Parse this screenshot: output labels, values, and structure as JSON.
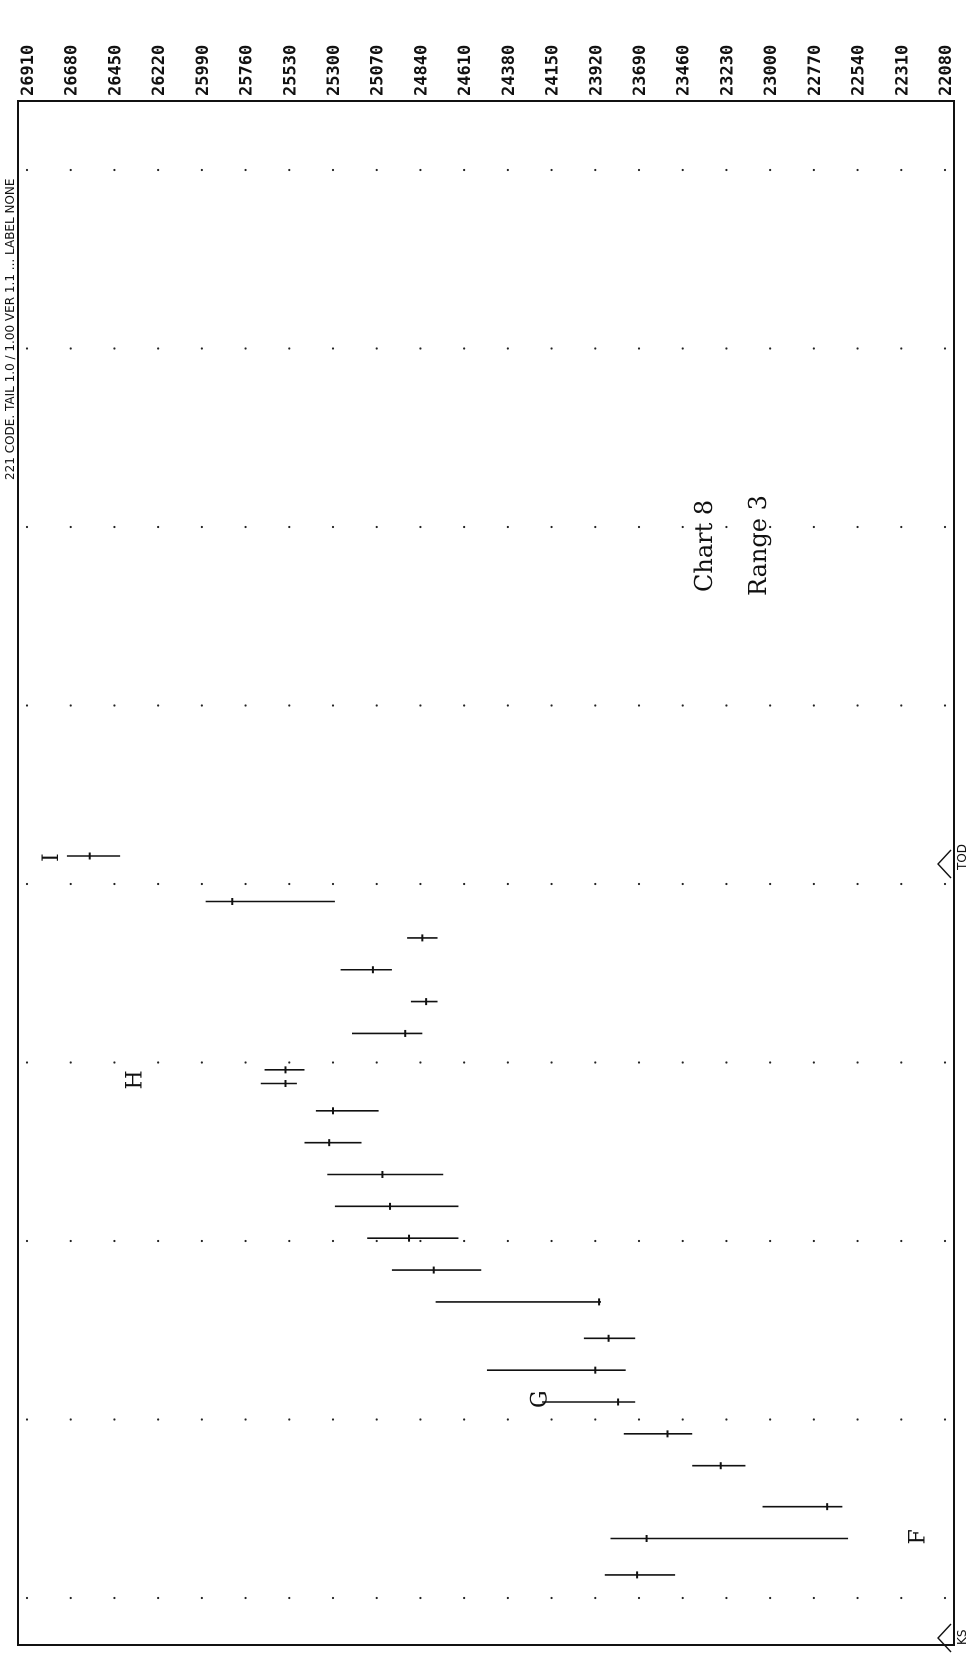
{
  "chart_data": {
    "type": "range-chart",
    "title": "",
    "annotation_lines": [
      "Chart 8",
      "Range 3"
    ],
    "top_header_text": "221 CODE. TAIL 1.0 / 1.00 VER 1.1 ... LABEL NONE",
    "bottom_marks": [
      "TOD",
      "KS"
    ],
    "axis_ticks": [
      "26910",
      "26680",
      "26450",
      "26220",
      "25990",
      "25760",
      "25530",
      "25300",
      "25070",
      "24840",
      "24610",
      "24380",
      "24150",
      "23920",
      "23690",
      "23460",
      "23230",
      "23000",
      "22770",
      "22540",
      "22310",
      "22080"
    ],
    "axis_min": 22080,
    "axis_max": 26910,
    "grid": "dotted",
    "group_labels": [
      {
        "label": "I",
        "value": 26790,
        "row": 1.0
      },
      {
        "label": "H",
        "value": 26350,
        "row": 6.0
      },
      {
        "label": "G",
        "value": 24220,
        "row": 13.0
      },
      {
        "label": "F",
        "value": 22230,
        "row": 16.0
      }
    ],
    "segments": [
      {
        "row": 1.0,
        "start": 26700,
        "end": 26420,
        "marker": 26580
      },
      {
        "row": 2.0,
        "start": 25970,
        "end": 25290,
        "marker": 25830
      },
      {
        "row": 2.8,
        "start": 24910,
        "end": 24750,
        "marker": 24830
      },
      {
        "row": 3.5,
        "start": 25260,
        "end": 24990,
        "marker": 25090
      },
      {
        "row": 4.2,
        "start": 24890,
        "end": 24750,
        "marker": 24810
      },
      {
        "row": 4.9,
        "start": 25200,
        "end": 24830,
        "marker": 24920
      },
      {
        "row": 5.7,
        "start": 25660,
        "end": 25450,
        "marker": 25550
      },
      {
        "row": 6.0,
        "start": 25680,
        "end": 25490,
        "marker": 25550
      },
      {
        "row": 6.6,
        "start": 25390,
        "end": 25060,
        "marker": 25300
      },
      {
        "row": 7.3,
        "start": 25450,
        "end": 25150,
        "marker": 25320
      },
      {
        "row": 8.0,
        "start": 25330,
        "end": 24720,
        "marker": 25040
      },
      {
        "row": 8.7,
        "start": 25290,
        "end": 24640,
        "marker": 25000
      },
      {
        "row": 9.4,
        "start": 25120,
        "end": 24640,
        "marker": 24900
      },
      {
        "row": 10.1,
        "start": 24990,
        "end": 24520,
        "marker": 24770
      },
      {
        "row": 10.8,
        "start": 24760,
        "end": 23890,
        "marker": 23900
      },
      {
        "row": 11.6,
        "start": 23980,
        "end": 23710,
        "marker": 23850
      },
      {
        "row": 12.3,
        "start": 24490,
        "end": 23760,
        "marker": 23920
      },
      {
        "row": 13.0,
        "start": 24200,
        "end": 23710,
        "marker": 23800
      },
      {
        "row": 13.7,
        "start": 23770,
        "end": 23410,
        "marker": 23540
      },
      {
        "row": 14.4,
        "start": 23410,
        "end": 23130,
        "marker": 23260
      },
      {
        "row": 15.3,
        "start": 23040,
        "end": 22620,
        "marker": 22700
      },
      {
        "row": 16.0,
        "start": 23840,
        "end": 22590,
        "marker": 23650
      },
      {
        "row": 16.8,
        "start": 23870,
        "end": 23500,
        "marker": 23700
      }
    ]
  }
}
